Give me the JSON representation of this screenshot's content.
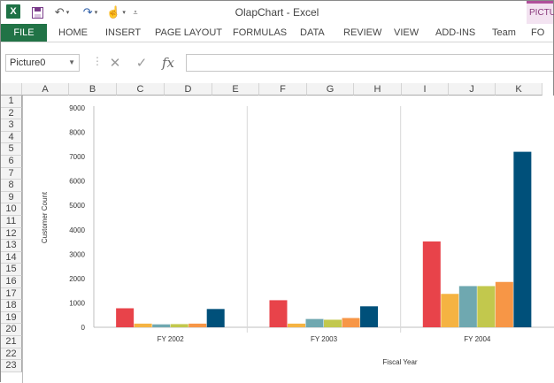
{
  "window": {
    "title": "OlapChart - Excel",
    "app_icon": "X"
  },
  "quick_access": [
    "save-icon",
    "undo-icon",
    "redo-icon",
    "touch-mode-icon",
    "customize-icon"
  ],
  "ribbon": {
    "file": "FILE",
    "tabs": [
      "HOME",
      "INSERT",
      "PAGE LAYOUT",
      "FORMULAS",
      "DATA",
      "REVIEW",
      "VIEW",
      "ADD-INS",
      "Team"
    ],
    "context_tab_group": "PICTU",
    "context_tab": "FO"
  },
  "formula_bar": {
    "name_box": "Picture0",
    "fx": "fx",
    "value": ""
  },
  "sheet": {
    "columns": [
      "A",
      "B",
      "C",
      "D",
      "E",
      "F",
      "G",
      "H",
      "I",
      "J",
      "K"
    ],
    "rows": [
      "1",
      "2",
      "3",
      "4",
      "5",
      "6",
      "7",
      "8",
      "9",
      "10",
      "11",
      "12",
      "13",
      "14",
      "15",
      "16",
      "17",
      "18",
      "19",
      "20",
      "21",
      "22",
      "23"
    ]
  },
  "colors": {
    "excel_green": "#217346",
    "context_pink": "#b0509b"
  },
  "chart_data": {
    "type": "bar",
    "categories": [
      "FY 2002",
      "FY 2003",
      "FY 2004"
    ],
    "series": [
      {
        "color": "#e8434a",
        "values": [
          780,
          1110,
          3520
        ]
      },
      {
        "color": "#f5b342",
        "values": [
          150,
          150,
          1370
        ]
      },
      {
        "color": "#6fa8b0",
        "values": [
          120,
          340,
          1690
        ]
      },
      {
        "color": "#c2c84d",
        "values": [
          130,
          310,
          1690
        ]
      },
      {
        "color": "#f79646",
        "values": [
          150,
          380,
          1860
        ]
      },
      {
        "color": "#00507a",
        "values": [
          750,
          860,
          7200
        ]
      }
    ],
    "yticks": [
      "0",
      "1000",
      "2000",
      "3000",
      "4000",
      "5000",
      "6000",
      "7000",
      "8000",
      "9000"
    ],
    "ylim": [
      0,
      9000
    ],
    "xlabel": "Fiscal Year",
    "ylabel": "Customer Count",
    "grid": false,
    "legend": "none"
  }
}
